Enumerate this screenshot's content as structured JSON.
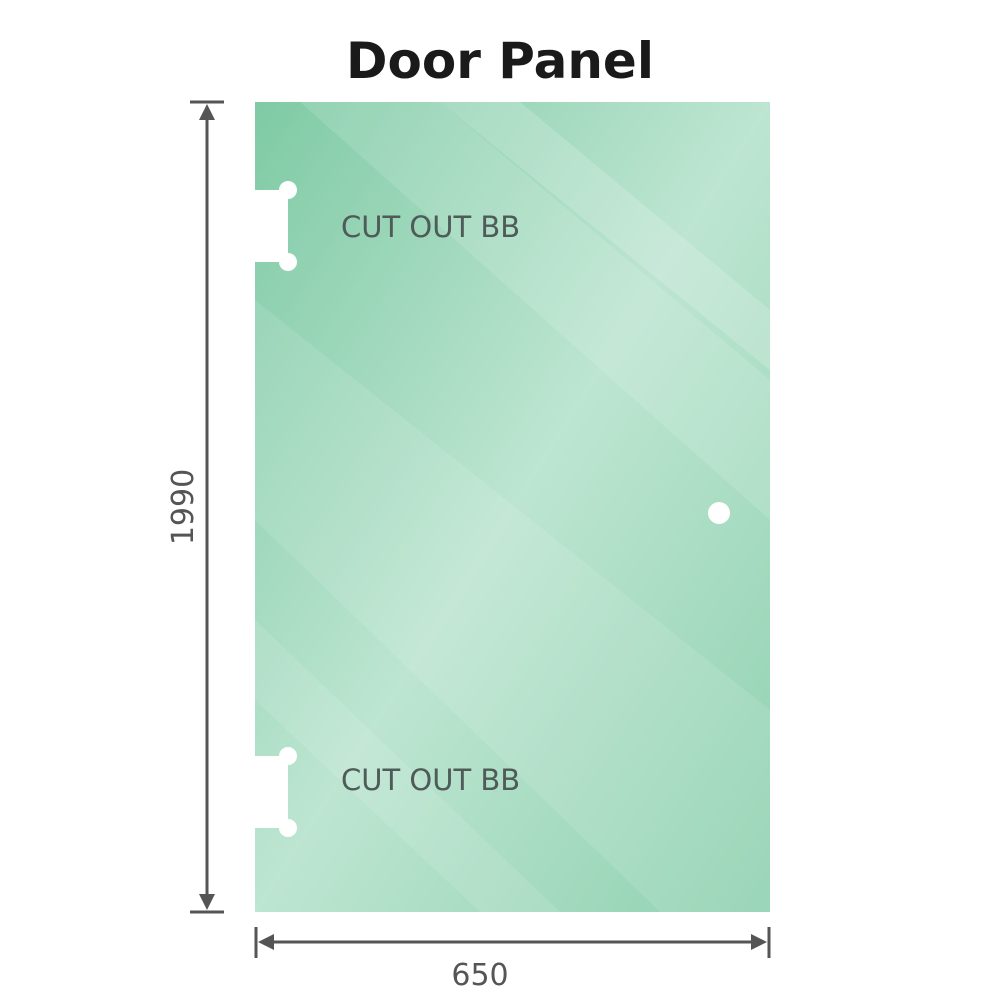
{
  "title": "Door Panel",
  "cutouts": [
    {
      "label": "CUT OUT BB"
    },
    {
      "label": "CUT OUT BB"
    }
  ],
  "dimensions": {
    "height": "1990",
    "width": "650"
  },
  "colors": {
    "glass": "#86cdaa",
    "glass_light": "#bfe6d3",
    "dimension_line": "#555555"
  }
}
